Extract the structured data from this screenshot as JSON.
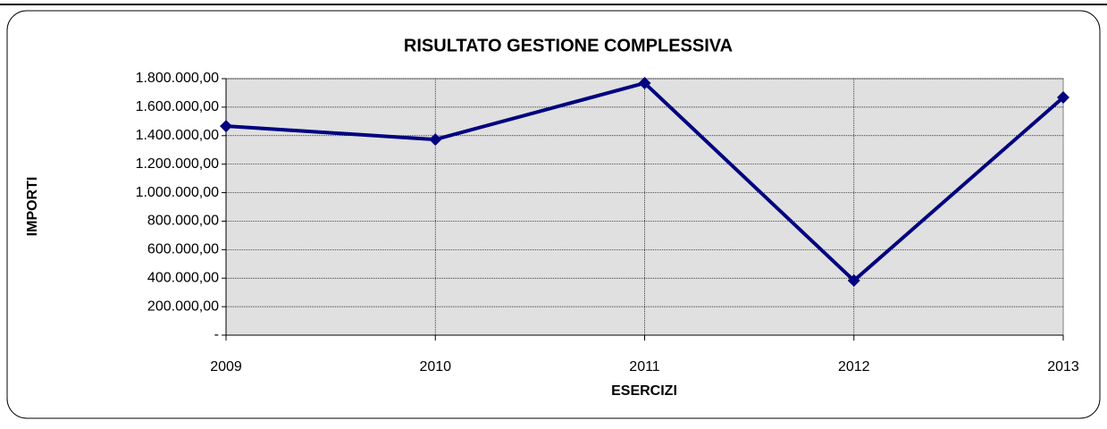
{
  "chart_data": {
    "type": "line",
    "title": "RISULTATO GESTIONE COMPLESSIVA",
    "x_label": "ESERCIZI",
    "y_label": "IMPORTI",
    "categories": [
      "2009",
      "2010",
      "2011",
      "2012",
      "2013"
    ],
    "series": [
      {
        "name": "RISULTATO GESTIONE COMPLESSIVA",
        "color": "#000080",
        "values": [
          1467000,
          1373000,
          1769000,
          383000,
          1668000
        ]
      }
    ],
    "ylim": [
      0,
      1800000
    ],
    "yticks": [
      {
        "value": 0,
        "label": "-"
      },
      {
        "value": 200000,
        "label": "200.000,00"
      },
      {
        "value": 400000,
        "label": "400.000,00"
      },
      {
        "value": 600000,
        "label": "600.000,00"
      },
      {
        "value": 800000,
        "label": "800.000,00"
      },
      {
        "value": 1000000,
        "label": "1.000.000,00"
      },
      {
        "value": 1200000,
        "label": "1.200.000,00"
      },
      {
        "value": 1400000,
        "label": "1.400.000,00"
      },
      {
        "value": 1600000,
        "label": "1.600.000,00"
      },
      {
        "value": 1800000,
        "label": "1.800.000,00"
      }
    ],
    "grid": true,
    "plot_background": "#e0e0e0"
  }
}
